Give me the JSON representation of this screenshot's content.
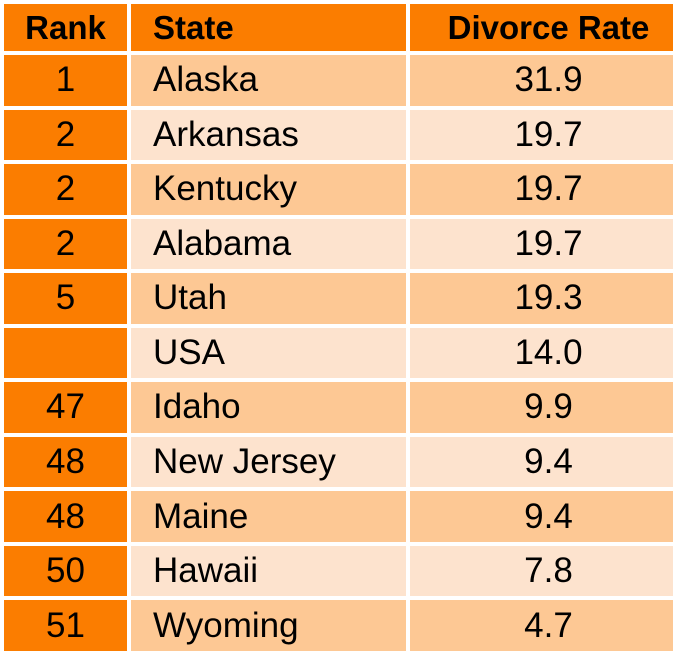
{
  "chart_data": {
    "type": "table",
    "columns": [
      "Rank",
      "State",
      "Divorce Rate"
    ],
    "rows": [
      {
        "rank": "1",
        "state": "Alaska",
        "rate": "31.9"
      },
      {
        "rank": "2",
        "state": "Arkansas",
        "rate": "19.7"
      },
      {
        "rank": "2",
        "state": "Kentucky",
        "rate": "19.7"
      },
      {
        "rank": "2",
        "state": "Alabama",
        "rate": "19.7"
      },
      {
        "rank": "5",
        "state": "Utah",
        "rate": "19.3"
      },
      {
        "rank": "",
        "state": "USA",
        "rate": "14.0"
      },
      {
        "rank": "47",
        "state": "Idaho",
        "rate": "9.9"
      },
      {
        "rank": "48",
        "state": "New Jersey",
        "rate": "9.4"
      },
      {
        "rank": "48",
        "state": "Maine",
        "rate": "9.4"
      },
      {
        "rank": "50",
        "state": "Hawaii",
        "rate": "7.8"
      },
      {
        "rank": "51",
        "state": "Wyoming",
        "rate": "4.7"
      }
    ]
  },
  "colors": {
    "header_and_rank_orange": "#FB7D00",
    "row_shade_dark": "#FDC894",
    "row_shade_light": "#FDE3CE",
    "grid_border": "#FFFFFF",
    "text": "#000000"
  }
}
